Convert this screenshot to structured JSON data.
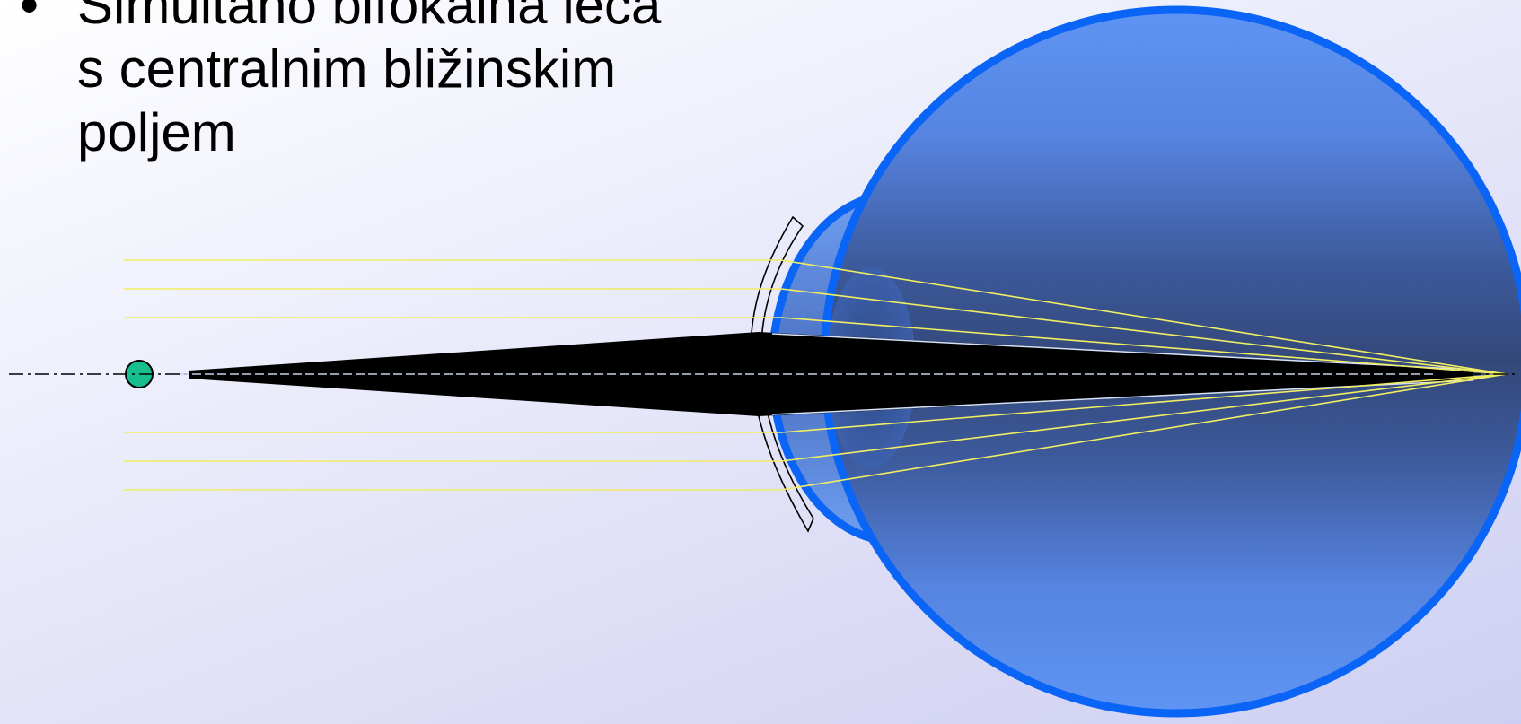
{
  "slide": {
    "bullet_symbol": "•",
    "bullet_lines": [
      "Simultano bifokalna leča",
      "s centralnim bližinskim",
      "poljem"
    ]
  },
  "colors": {
    "eye_outline": "#0a64f5",
    "eye_fill_light": "#5f94f4",
    "eye_fill_dark": "#33487a",
    "ray_yellow": "#f1ee63",
    "object_point": "#17bf8e",
    "image_cone": "#000000"
  }
}
